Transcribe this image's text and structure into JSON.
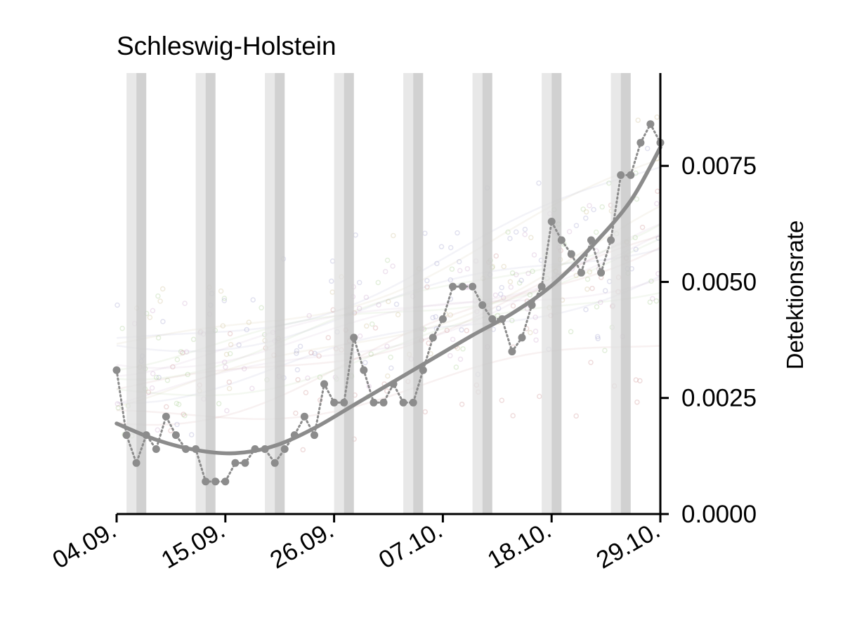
{
  "chart_data": {
    "type": "line",
    "title": "Schleswig-Holstein",
    "ylabel": "Detektionsrate",
    "xlabel": "",
    "x_range": [
      "2024-09-04",
      "2024-10-29"
    ],
    "x_ticks": [
      {
        "date": "2024-09-04",
        "label": "04.09."
      },
      {
        "date": "2024-09-15",
        "label": "15.09."
      },
      {
        "date": "2024-09-26",
        "label": "26.09."
      },
      {
        "date": "2024-10-07",
        "label": "07.10."
      },
      {
        "date": "2024-10-18",
        "label": "18.10."
      },
      {
        "date": "2024-10-29",
        "label": "29.10."
      }
    ],
    "ylim": [
      0,
      0.0095
    ],
    "y_ticks": [
      {
        "value": 0,
        "label": "0.0000"
      },
      {
        "value": 0.0025,
        "label": "0.0025"
      },
      {
        "value": 0.005,
        "label": "0.0050"
      },
      {
        "value": 0.0075,
        "label": "0.0075"
      }
    ],
    "y_axis_position": "right",
    "grid": false,
    "weekend_bands": [
      {
        "saturday": "2024-09-05",
        "sunday": "2024-09-06"
      },
      {
        "saturday": "2024-09-12",
        "sunday": "2024-09-13"
      },
      {
        "saturday": "2024-09-19",
        "sunday": "2024-09-20"
      },
      {
        "saturday": "2024-09-26",
        "sunday": "2024-09-27"
      },
      {
        "saturday": "2024-10-03",
        "sunday": "2024-10-04"
      },
      {
        "saturday": "2024-10-10",
        "sunday": "2024-10-11"
      },
      {
        "saturday": "2024-10-17",
        "sunday": "2024-10-18"
      },
      {
        "saturday": "2024-10-24",
        "sunday": "2024-10-25"
      }
    ],
    "colors": {
      "main": "#8c8c8c",
      "weekend_light": "#e0e0e0",
      "weekend_dark": "#c9c9c9",
      "background_series": [
        "#c98a8a",
        "#9a9ac9",
        "#a3c98a",
        "#c9a3c9",
        "#c9b98a"
      ]
    },
    "series": [
      {
        "role": "observed",
        "style": "dotted-with-markers",
        "x": [
          "2024-09-04",
          "2024-09-05",
          "2024-09-06",
          "2024-09-07",
          "2024-09-08",
          "2024-09-09",
          "2024-09-10",
          "2024-09-11",
          "2024-09-12",
          "2024-09-13",
          "2024-09-14",
          "2024-09-15",
          "2024-09-16",
          "2024-09-17",
          "2024-09-18",
          "2024-09-19",
          "2024-09-20",
          "2024-09-21",
          "2024-09-22",
          "2024-09-23",
          "2024-09-24",
          "2024-09-25",
          "2024-09-26",
          "2024-09-27",
          "2024-09-28",
          "2024-09-29",
          "2024-09-30",
          "2024-10-01",
          "2024-10-02",
          "2024-10-03",
          "2024-10-04",
          "2024-10-05",
          "2024-10-06",
          "2024-10-07",
          "2024-10-08",
          "2024-10-09",
          "2024-10-10",
          "2024-10-11",
          "2024-10-12",
          "2024-10-13",
          "2024-10-14",
          "2024-10-15",
          "2024-10-16",
          "2024-10-17",
          "2024-10-18",
          "2024-10-19",
          "2024-10-20",
          "2024-10-21",
          "2024-10-22",
          "2024-10-23",
          "2024-10-24",
          "2024-10-25",
          "2024-10-26",
          "2024-10-27",
          "2024-10-28",
          "2024-10-29"
        ],
        "values": [
          0.0031,
          0.0017,
          0.0011,
          0.0017,
          0.0014,
          0.0021,
          0.0017,
          0.0014,
          0.0014,
          0.0007,
          0.0007,
          0.0007,
          0.0011,
          0.0011,
          0.0014,
          0.0014,
          0.0011,
          0.0014,
          0.0017,
          0.0021,
          0.0017,
          0.0028,
          0.0024,
          0.0024,
          0.0038,
          0.0031,
          0.0024,
          0.0024,
          0.0028,
          0.0024,
          0.0024,
          0.0031,
          0.0038,
          0.0042,
          0.0049,
          0.0049,
          0.0049,
          0.0045,
          0.0042,
          0.0042,
          0.0035,
          0.0038,
          0.0045,
          0.0049,
          0.0063,
          0.0059,
          0.0056,
          0.0052,
          0.0059,
          0.0052,
          0.0059,
          0.0073,
          0.0073,
          0.008,
          0.0084,
          0.008
        ]
      },
      {
        "role": "smoothed",
        "style": "solid",
        "x": [
          "2024-09-04",
          "2024-09-08",
          "2024-09-12",
          "2024-09-16",
          "2024-09-20",
          "2024-09-24",
          "2024-09-28",
          "2024-10-02",
          "2024-10-06",
          "2024-10-10",
          "2024-10-14",
          "2024-10-18",
          "2024-10-22",
          "2024-10-26",
          "2024-10-29"
        ],
        "values": [
          0.00195,
          0.0016,
          0.00138,
          0.00131,
          0.00147,
          0.00185,
          0.00235,
          0.00285,
          0.00335,
          0.00385,
          0.00432,
          0.00492,
          0.00575,
          0.00675,
          0.0079
        ]
      }
    ]
  }
}
